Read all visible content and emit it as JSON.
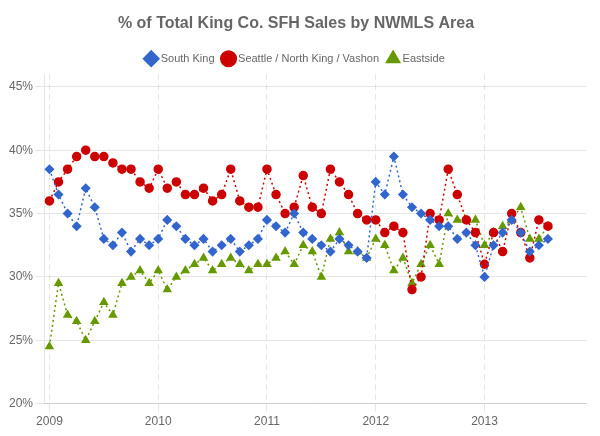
{
  "chart_data": {
    "type": "line",
    "title": "% of Total King Co. SFH Sales by NWMLS Area",
    "x": [
      2009,
      2009.0833333333,
      2009.1666666667,
      2009.25,
      2009.3333333333,
      2009.4166666667,
      2009.5,
      2009.5833333333,
      2009.6666666667,
      2009.75,
      2009.8333333333,
      2009.9166666667,
      2010,
      2010.0833333333,
      2010.1666666667,
      2010.25,
      2010.3333333333,
      2010.4166666667,
      2010.5,
      2010.5833333333,
      2010.6666666667,
      2010.75,
      2010.8333333333,
      2010.9166666667,
      2011,
      2011.0833333333,
      2011.1666666667,
      2011.25,
      2011.3333333333,
      2011.4166666667,
      2011.5,
      2011.5833333333,
      2011.6666666667,
      2011.75,
      2011.8333333333,
      2011.9166666667,
      2012,
      2012.0833333333,
      2012.1666666667,
      2012.25,
      2012.3333333333,
      2012.4166666667,
      2012.5,
      2012.5833333333,
      2012.6666666667,
      2012.75,
      2012.8333333333,
      2012.9166666667,
      2013,
      2013.0833333333,
      2013.1666666667,
      2013.25,
      2013.3333333333,
      2013.4166666667,
      2013.5,
      2013.5833333333
    ],
    "series": [
      {
        "name": "South King",
        "color": "#3366cc",
        "marker": "diamond",
        "line_style": "dotted",
        "values": [
          38.5,
          36.5,
          35.0,
          34.0,
          37.0,
          35.5,
          33.0,
          32.5,
          33.5,
          32.0,
          33.0,
          32.5,
          33.0,
          34.5,
          34.0,
          33.0,
          32.5,
          33.0,
          32.0,
          32.5,
          33.0,
          32.0,
          32.5,
          33.0,
          34.5,
          34.0,
          33.5,
          35.0,
          33.5,
          33.0,
          32.5,
          32.0,
          33.0,
          32.5,
          32.0,
          31.5,
          37.5,
          36.5,
          39.5,
          36.5,
          35.5,
          35.0,
          34.5,
          34.0,
          34.0,
          33.0,
          33.5,
          32.5,
          30.0,
          32.5,
          33.5,
          34.5,
          33.5,
          32.0,
          32.5,
          33.0
        ]
      },
      {
        "name": "Seattle / North King / Vashon",
        "color": "#cc0000",
        "marker": "circle",
        "line_style": "dotted",
        "values": [
          36.0,
          37.5,
          38.5,
          39.5,
          40.0,
          39.5,
          39.5,
          39.0,
          38.5,
          38.5,
          37.5,
          37.0,
          38.5,
          37.0,
          37.5,
          36.5,
          36.5,
          37.0,
          36.0,
          36.5,
          38.5,
          36.0,
          35.5,
          35.5,
          38.5,
          36.5,
          35.0,
          35.5,
          38.0,
          35.5,
          35.0,
          38.5,
          37.5,
          36.5,
          35.0,
          34.5,
          34.5,
          33.5,
          34.0,
          33.5,
          29.0,
          30.0,
          35.0,
          34.5,
          38.5,
          36.5,
          34.5,
          33.5,
          31.0,
          33.5,
          32.0,
          35.0,
          33.5,
          31.5,
          34.5,
          34.0
        ]
      },
      {
        "name": "Eastside",
        "color": "#669900",
        "marker": "triangle",
        "line_style": "dotted",
        "values": [
          24.5,
          29.5,
          27.0,
          26.5,
          25.0,
          26.5,
          28.0,
          27.0,
          29.5,
          30.0,
          30.5,
          29.5,
          30.5,
          29.0,
          30.0,
          30.5,
          31.0,
          31.5,
          30.5,
          31.0,
          31.5,
          31.0,
          30.5,
          31.0,
          31.0,
          31.5,
          32.0,
          31.0,
          32.5,
          32.0,
          30.0,
          33.0,
          33.5,
          32.0,
          32.0,
          31.5,
          33.0,
          32.5,
          30.5,
          31.5,
          29.5,
          31.0,
          32.5,
          31.0,
          35.0,
          34.5,
          34.5,
          34.5,
          32.5,
          33.5,
          34.0,
          34.5,
          35.5,
          33.0,
          33.0,
          34.0
        ]
      }
    ],
    "xlim": [
      2008.95,
      2013.9333333333
    ],
    "xticks": [
      2009,
      2010,
      2011,
      2012,
      2013
    ],
    "ylim": [
      20,
      46
    ],
    "yticks": [
      {
        "value": 20,
        "label": "20%"
      },
      {
        "value": 25,
        "label": "25%"
      },
      {
        "value": 30,
        "label": "30%"
      },
      {
        "value": 35,
        "label": "35%"
      },
      {
        "value": 40,
        "label": "40%"
      },
      {
        "value": 45,
        "label": "45%"
      }
    ],
    "grid": true,
    "legend": "top"
  }
}
